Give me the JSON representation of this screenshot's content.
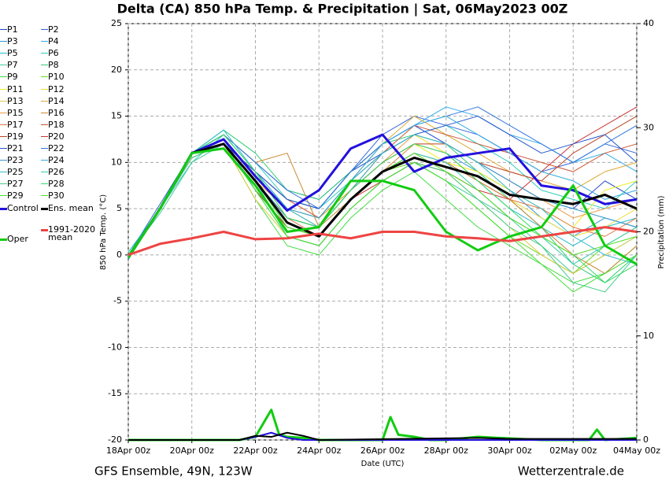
{
  "chart_data": {
    "type": "line",
    "title": "Delta  (CA)  850 hPa Temp. & Precipitation | Sat, 06May2023 00Z",
    "subtitle": "GFS Ensemble, 49N, 123W",
    "source": "Wetterzentrale.de",
    "ylabel": "850 hPa Temp. (°C)",
    "y2label": "Precipitation (mm)",
    "xlabel": "Date (UTC)",
    "xlim": [
      0,
      16
    ],
    "xticks": [
      {
        "value": 0,
        "label": "18Apr 00z"
      },
      {
        "value": 2,
        "label": "20Apr 00z"
      },
      {
        "value": 4,
        "label": "22Apr 00z"
      },
      {
        "value": 6,
        "label": "24Apr 00z"
      },
      {
        "value": 8,
        "label": "26Apr 00z"
      },
      {
        "value": 10,
        "label": "28Apr 00z"
      },
      {
        "value": 12,
        "label": "30Apr 00z"
      },
      {
        "value": 14,
        "label": "02May 00z"
      },
      {
        "value": 16,
        "label": "04May 00z"
      }
    ],
    "ylim": [
      -20,
      25
    ],
    "yticks": [
      -20,
      -15,
      -10,
      -5,
      0,
      5,
      10,
      15,
      20,
      25
    ],
    "y2lim": [
      0,
      40
    ],
    "y2ticks": [
      0,
      10,
      20,
      30,
      40
    ],
    "grid": true,
    "x": [
      0,
      1,
      2,
      3,
      4,
      5,
      6,
      7,
      8,
      9,
      10,
      11,
      12,
      13,
      14,
      15,
      16
    ],
    "series": [
      {
        "name": "P1",
        "color": "#2244cc",
        "values": [
          0,
          5,
          11,
          12,
          9,
          6,
          5,
          9,
          12,
          14,
          12,
          10,
          8,
          6,
          5,
          8,
          6
        ]
      },
      {
        "name": "P2",
        "color": "#3366dd",
        "values": [
          0,
          5.5,
          11,
          13,
          10,
          7,
          6,
          9,
          13,
          15,
          14,
          13,
          11,
          9,
          10,
          12,
          11
        ]
      },
      {
        "name": "P3",
        "color": "#3399dd",
        "values": [
          -0.5,
          5,
          10.5,
          12,
          8,
          4,
          3,
          7,
          10,
          12,
          11,
          9,
          7,
          4,
          2,
          4,
          3
        ]
      },
      {
        "name": "P4",
        "color": "#33aaee",
        "values": [
          0,
          5,
          11,
          13,
          9,
          5,
          4,
          8,
          12,
          14,
          16,
          15,
          13,
          12,
          10,
          11,
          9
        ]
      },
      {
        "name": "P5",
        "color": "#22bbcc",
        "values": [
          0.3,
          5,
          11,
          12.5,
          7,
          3,
          2,
          6,
          9,
          11,
          10,
          8,
          5,
          3,
          1,
          3,
          4
        ]
      },
      {
        "name": "P6",
        "color": "#33ccbb",
        "values": [
          0,
          5,
          10,
          13,
          10,
          6,
          5,
          8,
          11,
          13,
          14,
          12,
          10,
          7,
          6,
          5,
          8
        ]
      },
      {
        "name": "P7",
        "color": "#44cc99",
        "values": [
          0,
          4.5,
          10,
          12,
          8,
          2,
          1,
          5,
          8,
          10,
          8,
          6,
          4,
          1,
          -2,
          0,
          2
        ]
      },
      {
        "name": "P8",
        "color": "#33cc77",
        "values": [
          0,
          5,
          11,
          13.5,
          11,
          7,
          6,
          9,
          12,
          13,
          12,
          9,
          6,
          3,
          -1,
          -3,
          0
        ]
      },
      {
        "name": "P9",
        "color": "#44dd44",
        "values": [
          0,
          5,
          11,
          12,
          6,
          1,
          0,
          4,
          7,
          9,
          6,
          3,
          1,
          -1,
          -3,
          -2,
          1
        ]
      },
      {
        "name": "P10",
        "color": "#66dd22",
        "values": [
          0,
          5,
          11,
          12,
          7,
          3,
          2,
          6,
          9,
          10,
          8,
          5,
          2,
          0,
          -2,
          1,
          3
        ]
      },
      {
        "name": "P11",
        "color": "#eeee22",
        "values": [
          0,
          5,
          11,
          12,
          8,
          5,
          4,
          7,
          10,
          12,
          10,
          9,
          7,
          5,
          3,
          7,
          8
        ]
      },
      {
        "name": "P12",
        "color": "#eedd33",
        "values": [
          0,
          5,
          11,
          13,
          9,
          4,
          3,
          7,
          11,
          13,
          11,
          8,
          6,
          4,
          2,
          3,
          5
        ]
      },
      {
        "name": "P13",
        "color": "#ddcc44",
        "values": [
          0,
          5,
          11,
          12,
          6,
          2,
          1,
          5,
          8,
          10,
          9,
          6,
          3,
          0,
          -2,
          0,
          2
        ]
      },
      {
        "name": "P14",
        "color": "#ddaa33",
        "values": [
          0,
          5,
          11,
          12,
          9,
          5,
          3,
          8,
          12,
          15,
          13,
          11,
          9,
          8,
          7,
          9,
          10
        ]
      },
      {
        "name": "P15",
        "color": "#ee9944",
        "values": [
          0,
          5,
          11,
          12,
          8,
          5,
          4,
          7,
          10,
          13,
          12,
          10,
          8,
          6,
          4,
          5,
          6
        ]
      },
      {
        "name": "P16",
        "color": "#cc8833",
        "values": [
          0,
          5,
          11,
          13,
          10,
          11,
          3,
          6,
          9,
          12,
          11,
          8,
          6,
          3,
          0,
          -2,
          1
        ]
      },
      {
        "name": "P17",
        "color": "#dd7744",
        "values": [
          0,
          5,
          10.5,
          12,
          8,
          4,
          2,
          6,
          9,
          11,
          10,
          8,
          6,
          5,
          3,
          2,
          4
        ]
      },
      {
        "name": "P18",
        "color": "#cc5533",
        "values": [
          0,
          5,
          11,
          12,
          9,
          6,
          4,
          8,
          11,
          14,
          13,
          12,
          11,
          10,
          9,
          11,
          12
        ]
      },
      {
        "name": "P19",
        "color": "#bb4422",
        "values": [
          0,
          5,
          11,
          12,
          8,
          4,
          3,
          7,
          10,
          12,
          12,
          10,
          9,
          8,
          11,
          13,
          15
        ]
      },
      {
        "name": "P20",
        "color": "#cc3333",
        "values": [
          0,
          5,
          11,
          12,
          7,
          3,
          2,
          6,
          8,
          10,
          9,
          7,
          6,
          9,
          12,
          14,
          16
        ]
      },
      {
        "name": "P21",
        "color": "#2255cc",
        "values": [
          0,
          5,
          11,
          12,
          9,
          6,
          5,
          9,
          11,
          13,
          14,
          15,
          13,
          11,
          12,
          13,
          10
        ]
      },
      {
        "name": "P22",
        "color": "#3377dd",
        "values": [
          0,
          5,
          11,
          13,
          10,
          7,
          5,
          9,
          12,
          14,
          15,
          16,
          14,
          12,
          10,
          12,
          14
        ]
      },
      {
        "name": "P23",
        "color": "#3399cc",
        "values": [
          0,
          5,
          11,
          12,
          8,
          4,
          3,
          7,
          11,
          13,
          12,
          10,
          8,
          6,
          5,
          4,
          3
        ]
      },
      {
        "name": "P24",
        "color": "#33aadd",
        "values": [
          0,
          5,
          11,
          13,
          9,
          5,
          4,
          8,
          12,
          14,
          15,
          13,
          11,
          9,
          8,
          6,
          7
        ]
      },
      {
        "name": "P25",
        "color": "#33bbcc",
        "values": [
          0,
          5,
          11,
          13.5,
          9,
          5,
          3,
          8,
          11,
          13,
          12,
          10,
          7,
          5,
          2,
          0,
          -1
        ]
      },
      {
        "name": "P26",
        "color": "#33ccaa",
        "values": [
          0,
          5,
          11,
          12,
          8,
          3,
          2,
          6,
          9,
          11,
          10,
          7,
          4,
          2,
          -1,
          1,
          3
        ]
      },
      {
        "name": "P27",
        "color": "#44cc88",
        "values": [
          0,
          5,
          10.5,
          12,
          7,
          2,
          1,
          5,
          8,
          10,
          9,
          6,
          3,
          1,
          -3,
          -4,
          0
        ]
      },
      {
        "name": "P28",
        "color": "#33dd66",
        "values": [
          0,
          5,
          11,
          13,
          9,
          4,
          3,
          7,
          10,
          12,
          11,
          8,
          5,
          2,
          0,
          -3,
          -1
        ]
      },
      {
        "name": "P29",
        "color": "#44dd33",
        "values": [
          0,
          5,
          11,
          12,
          7,
          2,
          1,
          5,
          8,
          10,
          8,
          5,
          2,
          -1,
          -4,
          -2,
          0
        ]
      },
      {
        "name": "P30",
        "color": "#55dd22",
        "values": [
          0,
          5,
          11,
          12,
          8,
          3,
          2,
          6,
          9,
          11,
          9,
          7,
          4,
          2,
          0,
          1,
          2
        ]
      },
      {
        "name": "Control",
        "color": "#2211dd",
        "width": 3,
        "values": [
          -0.3,
          5,
          11,
          12.5,
          8.5,
          4.8,
          7,
          11.5,
          13,
          9,
          10.5,
          11,
          11.5,
          7.5,
          7,
          5.5,
          6
        ]
      },
      {
        "name": "Ens. mean",
        "color": "#000000",
        "width": 3,
        "values": [
          -0.3,
          5,
          11,
          12,
          8,
          3.5,
          2,
          6,
          9,
          10.5,
          9.5,
          8.5,
          6.5,
          6,
          5.5,
          6.5,
          5
        ]
      },
      {
        "name": "Oper",
        "color": "#11cc11",
        "width": 3,
        "values": [
          -0.3,
          5,
          11,
          11.5,
          7.5,
          2.5,
          3,
          8,
          8,
          7,
          2.5,
          0.5,
          2,
          3,
          7.5,
          1,
          -1
        ]
      },
      {
        "name": "1991-2020\nmean",
        "color": "#ee4444",
        "width": 3,
        "values": [
          0,
          1.2,
          1.8,
          2.5,
          1.7,
          1.8,
          2.3,
          1.8,
          2.5,
          2.5,
          2,
          1.8,
          1.5,
          2,
          2.5,
          3,
          2.5
        ]
      }
    ],
    "precipitation": [
      {
        "color": "#11cc11",
        "axis": "y2",
        "width": 3,
        "x": [
          0,
          3.5,
          4,
          4.5,
          4.75,
          5,
          5.5,
          6,
          8,
          8.25,
          8.5,
          9,
          9.5,
          10,
          11,
          13,
          14.5,
          14.75,
          15,
          16
        ],
        "values": [
          0,
          0,
          0.3,
          2.9,
          0.5,
          0.3,
          0.2,
          0,
          0,
          2.2,
          0.5,
          0.3,
          0,
          0,
          0.3,
          0,
          0,
          1,
          0,
          0.2
        ]
      },
      {
        "color": "#2211dd",
        "axis": "y2",
        "width": 2,
        "x": [
          0,
          3.5,
          4,
          4.5,
          5,
          5.5,
          6,
          16
        ],
        "values": [
          0,
          0,
          0.3,
          0.7,
          0.2,
          0,
          0,
          0
        ]
      },
      {
        "color": "#000000",
        "axis": "y2",
        "width": 2,
        "x": [
          0,
          3.5,
          4,
          4.5,
          5,
          5.5,
          6,
          11,
          12,
          16
        ],
        "values": [
          0,
          0,
          0.4,
          0.3,
          0.7,
          0.4,
          0,
          0.2,
          0.1,
          0.1
        ]
      }
    ]
  }
}
